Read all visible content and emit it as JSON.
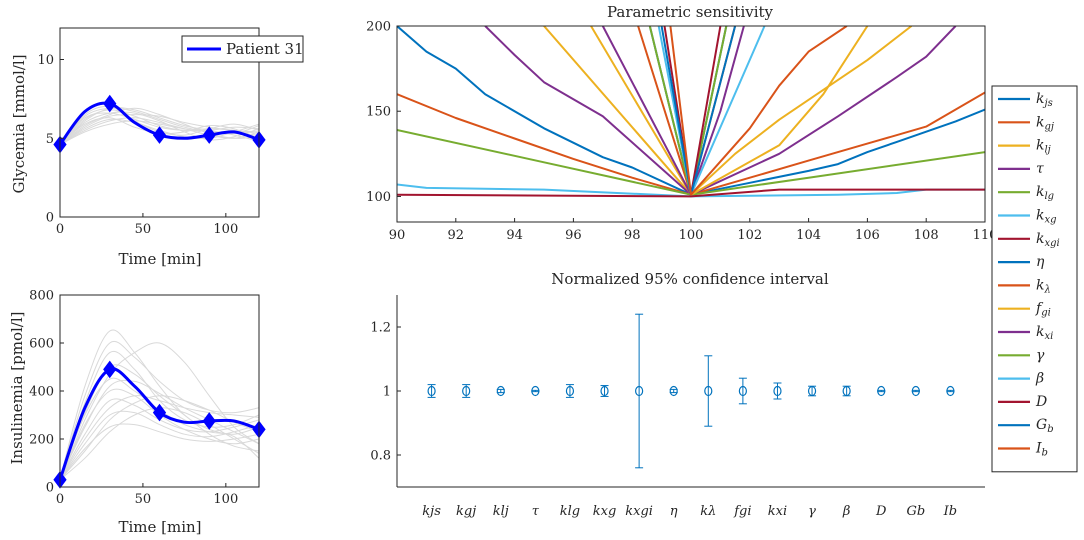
{
  "chart_data": [
    {
      "id": "glycemia",
      "type": "line",
      "xlabel": "Time [min]",
      "ylabel": "Glycemia [mmol/l]",
      "xlim": [
        0,
        120
      ],
      "ylim": [
        0,
        12
      ],
      "xticks": [
        0,
        50,
        100
      ],
      "yticks": [
        0,
        5,
        10
      ],
      "legend": {
        "label": "Patient 31",
        "location": "top-right"
      },
      "series": [
        {
          "name": "Patient 31",
          "color": "#0000ff",
          "x": [
            0,
            15,
            30,
            45,
            60,
            75,
            90,
            105,
            120
          ],
          "y": [
            4.6,
            6.7,
            7.2,
            6.0,
            5.2,
            5.0,
            5.2,
            5.4,
            4.9
          ]
        }
      ],
      "markers": {
        "x": [
          0,
          30,
          60,
          90,
          120
        ],
        "y": [
          4.6,
          7.2,
          5.2,
          5.2,
          4.9
        ]
      },
      "background_series": [
        [
          4.6,
          6.2,
          6.8,
          6.4,
          5.8,
          5.5,
          5.6,
          5.5,
          5.3
        ],
        [
          4.6,
          5.8,
          6.5,
          6.9,
          6.5,
          5.9,
          5.3,
          5.0,
          5.1
        ],
        [
          4.6,
          6.5,
          7.0,
          6.1,
          5.4,
          5.2,
          5.6,
          5.9,
          5.5
        ],
        [
          4.6,
          5.5,
          6.1,
          6.3,
          6.0,
          5.6,
          5.2,
          5.0,
          5.4
        ],
        [
          4.6,
          6.0,
          6.6,
          6.6,
          6.1,
          5.4,
          4.9,
          5.1,
          5.6
        ],
        [
          4.6,
          5.9,
          6.3,
          5.7,
          5.3,
          5.4,
          5.8,
          5.6,
          5.0
        ],
        [
          4.6,
          6.4,
          6.9,
          6.7,
          6.2,
          5.7,
          5.4,
          5.3,
          5.8
        ],
        [
          4.6,
          5.6,
          6.2,
          6.0,
          5.5,
          5.1,
          5.0,
          5.4,
          5.9
        ],
        [
          4.6,
          6.1,
          6.9,
          6.8,
          6.3,
          5.8,
          5.5,
          5.2,
          4.8
        ],
        [
          4.6,
          5.7,
          6.4,
          6.5,
          6.4,
          6.0,
          5.7,
          5.5,
          5.4
        ],
        [
          4.6,
          6.3,
          6.6,
          6.2,
          5.7,
          5.5,
          5.5,
          5.7,
          5.6
        ],
        [
          4.6,
          5.4,
          5.9,
          6.1,
          5.9,
          5.6,
          5.4,
          5.3,
          5.2
        ]
      ]
    },
    {
      "id": "insulinemia",
      "type": "line",
      "xlabel": "Time [min]",
      "ylabel": "Insulinemia [pmol/l]",
      "xlim": [
        0,
        120
      ],
      "ylim": [
        0,
        800
      ],
      "xticks": [
        0,
        50,
        100
      ],
      "yticks": [
        0,
        200,
        400,
        600,
        800
      ],
      "series": [
        {
          "name": "Patient 31",
          "color": "#0000ff",
          "x": [
            0,
            15,
            30,
            45,
            60,
            75,
            90,
            105,
            120
          ],
          "y": [
            30,
            330,
            490,
            420,
            310,
            270,
            275,
            275,
            240
          ]
        }
      ],
      "markers": {
        "x": [
          0,
          30,
          60,
          90,
          120
        ],
        "y": [
          30,
          490,
          310,
          275,
          240
        ]
      },
      "background_series": [
        [
          30,
          420,
          650,
          560,
          420,
          300,
          240,
          220,
          250
        ],
        [
          30,
          280,
          470,
          560,
          600,
          520,
          380,
          250,
          180
        ],
        [
          30,
          200,
          330,
          380,
          360,
          330,
          310,
          300,
          290
        ],
        [
          30,
          350,
          560,
          490,
          360,
          280,
          250,
          260,
          300
        ],
        [
          30,
          150,
          280,
          350,
          380,
          360,
          320,
          270,
          230
        ],
        [
          30,
          250,
          420,
          440,
          390,
          330,
          280,
          230,
          180
        ],
        [
          30,
          310,
          500,
          470,
          380,
          300,
          220,
          170,
          150
        ],
        [
          30,
          180,
          300,
          310,
          260,
          220,
          210,
          230,
          260
        ],
        [
          30,
          260,
          400,
          380,
          300,
          240,
          200,
          180,
          200
        ],
        [
          30,
          120,
          230,
          300,
          330,
          310,
          260,
          200,
          140
        ],
        [
          30,
          380,
          600,
          540,
          440,
          360,
          320,
          310,
          330
        ],
        [
          30,
          220,
          360,
          340,
          280,
          240,
          230,
          250,
          280
        ],
        [
          30,
          160,
          250,
          260,
          230,
          200,
          190,
          200,
          220
        ],
        [
          30,
          300,
          450,
          400,
          320,
          260,
          230,
          210,
          120
        ]
      ]
    },
    {
      "id": "sensitivity",
      "type": "line",
      "title": "Parametric sensitivity",
      "xlim": [
        90,
        110
      ],
      "ylim": [
        85,
        200
      ],
      "xticks": [
        90,
        92,
        94,
        96,
        98,
        100,
        102,
        104,
        106,
        108,
        110
      ],
      "yticks": [
        100,
        150,
        200
      ],
      "series": [
        {
          "name": "k_js",
          "color": "#0072bd",
          "x": [
            90,
            91,
            92,
            93,
            95,
            97,
            98,
            100,
            102,
            104,
            105,
            106,
            107,
            108,
            109,
            110
          ],
          "y": [
            200,
            185,
            175,
            160,
            140,
            123,
            117,
            101,
            108,
            115,
            119,
            126,
            132,
            138,
            144,
            151
          ]
        },
        {
          "name": "k_gj",
          "color": "#d95319",
          "x": [
            90,
            92,
            94,
            96,
            98,
            100,
            102,
            104,
            106,
            108,
            110
          ],
          "y": [
            160,
            146,
            134,
            122,
            111,
            101,
            111,
            121,
            131,
            141,
            161
          ]
        },
        {
          "name": "k_lj",
          "color": "#edb120",
          "x": [
            95,
            100,
            101.5,
            103,
            106,
            107.5
          ],
          "y": [
            200,
            101,
            125,
            145,
            180,
            200
          ]
        },
        {
          "name": "tau",
          "color": "#7e2f8e",
          "x": [
            93,
            94,
            95,
            97,
            100,
            103,
            105,
            107,
            108,
            109
          ],
          "y": [
            200,
            183,
            167,
            147,
            101,
            125,
            147,
            170,
            182,
            200
          ]
        },
        {
          "name": "k_lg",
          "color": "#77ac30",
          "x": [
            90,
            95,
            100,
            104,
            110
          ],
          "y": [
            139,
            120,
            101,
            111,
            126
          ]
        },
        {
          "name": "k_xg",
          "color": "#4dbeee",
          "x": [
            90,
            91,
            95,
            100,
            105,
            107,
            108,
            110
          ],
          "y": [
            107,
            105,
            104,
            100,
            101,
            102,
            104,
            104
          ]
        },
        {
          "name": "k_xgi",
          "color": "#a2142f",
          "x": [
            90,
            100,
            103,
            110
          ],
          "y": [
            101,
            100,
            104,
            104
          ]
        },
        {
          "name": "eta",
          "color": "#0072bd",
          "x": [
            98.6,
            100,
            101.2
          ],
          "y": [
            200,
            101,
            200
          ]
        },
        {
          "name": "k_lambda",
          "color": "#d95319",
          "x": [
            98.2,
            100,
            101.5
          ],
          "y": [
            200,
            101,
            200
          ]
        },
        {
          "name": "f_gi",
          "color": "#edb120",
          "x": [
            96.6,
            100,
            103,
            104.5,
            106
          ],
          "y": [
            200,
            101,
            130,
            160,
            200
          ]
        },
        {
          "name": "k_xi",
          "color": "#7e2f8e",
          "x": [
            97,
            100,
            101,
            101.8
          ],
          "y": [
            200,
            101,
            150,
            200
          ]
        },
        {
          "name": "gamma",
          "color": "#77ac30",
          "x": [
            98.6,
            100,
            101.2
          ],
          "y": [
            200,
            101,
            200
          ]
        },
        {
          "name": "beta",
          "color": "#4dbeee",
          "x": [
            98.9,
            100,
            102.5
          ],
          "y": [
            200,
            101,
            200
          ]
        },
        {
          "name": "D",
          "color": "#a2142f",
          "x": [
            99.1,
            100,
            101
          ],
          "y": [
            200,
            101,
            200
          ]
        },
        {
          "name": "G_b",
          "color": "#0072bd",
          "x": [
            99,
            100,
            101.5
          ],
          "y": [
            200,
            101,
            200
          ]
        },
        {
          "name": "I_b",
          "color": "#d95319",
          "x": [
            99.3,
            100,
            102,
            103,
            104,
            105.3
          ],
          "y": [
            200,
            101,
            140,
            165,
            185,
            200
          ]
        }
      ]
    },
    {
      "id": "confidence",
      "type": "scatter",
      "title": "Normalized 95% confidence interval",
      "ylim": [
        0.7,
        1.3
      ],
      "yticks": [
        0.8,
        1,
        1.2
      ],
      "ytick_labels": [
        "0.8",
        "1",
        "1.2"
      ],
      "color": "#0072bd",
      "categories": [
        "k_js",
        "k_gj",
        "k_lj",
        "tau",
        "k_lg",
        "k_xg",
        "k_xgi",
        "eta",
        "k_lambda",
        "f_gi",
        "k_xi",
        "gamma",
        "beta",
        "D",
        "G_b",
        "I_b"
      ],
      "category_labels": [
        "kjs",
        "kgj",
        "klj",
        "τ",
        "klg",
        "kxg",
        "kxgi",
        "η",
        "kλ",
        "fgi",
        "kxi",
        "γ",
        "β",
        "D",
        "Gb",
        "Ib"
      ],
      "values": [
        1,
        1,
        1,
        1,
        1,
        1,
        1,
        1,
        1,
        1,
        1,
        1,
        1,
        1,
        1,
        1
      ],
      "lower": [
        0.98,
        0.98,
        0.995,
        0.998,
        0.98,
        0.983,
        0.76,
        0.995,
        0.89,
        0.96,
        0.975,
        0.985,
        0.985,
        0.998,
        0.998,
        0.998
      ],
      "upper": [
        1.02,
        1.02,
        1.005,
        1.002,
        1.02,
        1.017,
        1.24,
        1.005,
        1.11,
        1.04,
        1.025,
        1.015,
        1.015,
        1.002,
        1.002,
        1.002
      ]
    }
  ],
  "legend": {
    "items": [
      {
        "name": "k_js",
        "base": "k",
        "sub": "js",
        "color": "#0072bd"
      },
      {
        "name": "k_gj",
        "base": "k",
        "sub": "gj",
        "color": "#d95319"
      },
      {
        "name": "k_lj",
        "base": "k",
        "sub": "lj",
        "color": "#edb120"
      },
      {
        "name": "tau",
        "base": "τ",
        "sub": "",
        "color": "#7e2f8e"
      },
      {
        "name": "k_lg",
        "base": "k",
        "sub": "lg",
        "color": "#77ac30"
      },
      {
        "name": "k_xg",
        "base": "k",
        "sub": "xg",
        "color": "#4dbeee"
      },
      {
        "name": "k_xgi",
        "base": "k",
        "sub": "xgi",
        "color": "#a2142f"
      },
      {
        "name": "eta",
        "base": "η",
        "sub": "",
        "color": "#0072bd"
      },
      {
        "name": "k_lambda",
        "base": "k",
        "sub": "λ",
        "color": "#d95319"
      },
      {
        "name": "f_gi",
        "base": "f",
        "sub": "gi",
        "color": "#edb120"
      },
      {
        "name": "k_xi",
        "base": "k",
        "sub": "xi",
        "color": "#7e2f8e"
      },
      {
        "name": "gamma",
        "base": "γ",
        "sub": "",
        "color": "#77ac30"
      },
      {
        "name": "beta",
        "base": "β",
        "sub": "",
        "color": "#4dbeee"
      },
      {
        "name": "D",
        "base": "D",
        "sub": "",
        "color": "#a2142f"
      },
      {
        "name": "G_b",
        "base": "G",
        "sub": "b",
        "color": "#0072bd"
      },
      {
        "name": "I_b",
        "base": "I",
        "sub": "b",
        "color": "#d95319"
      }
    ]
  }
}
